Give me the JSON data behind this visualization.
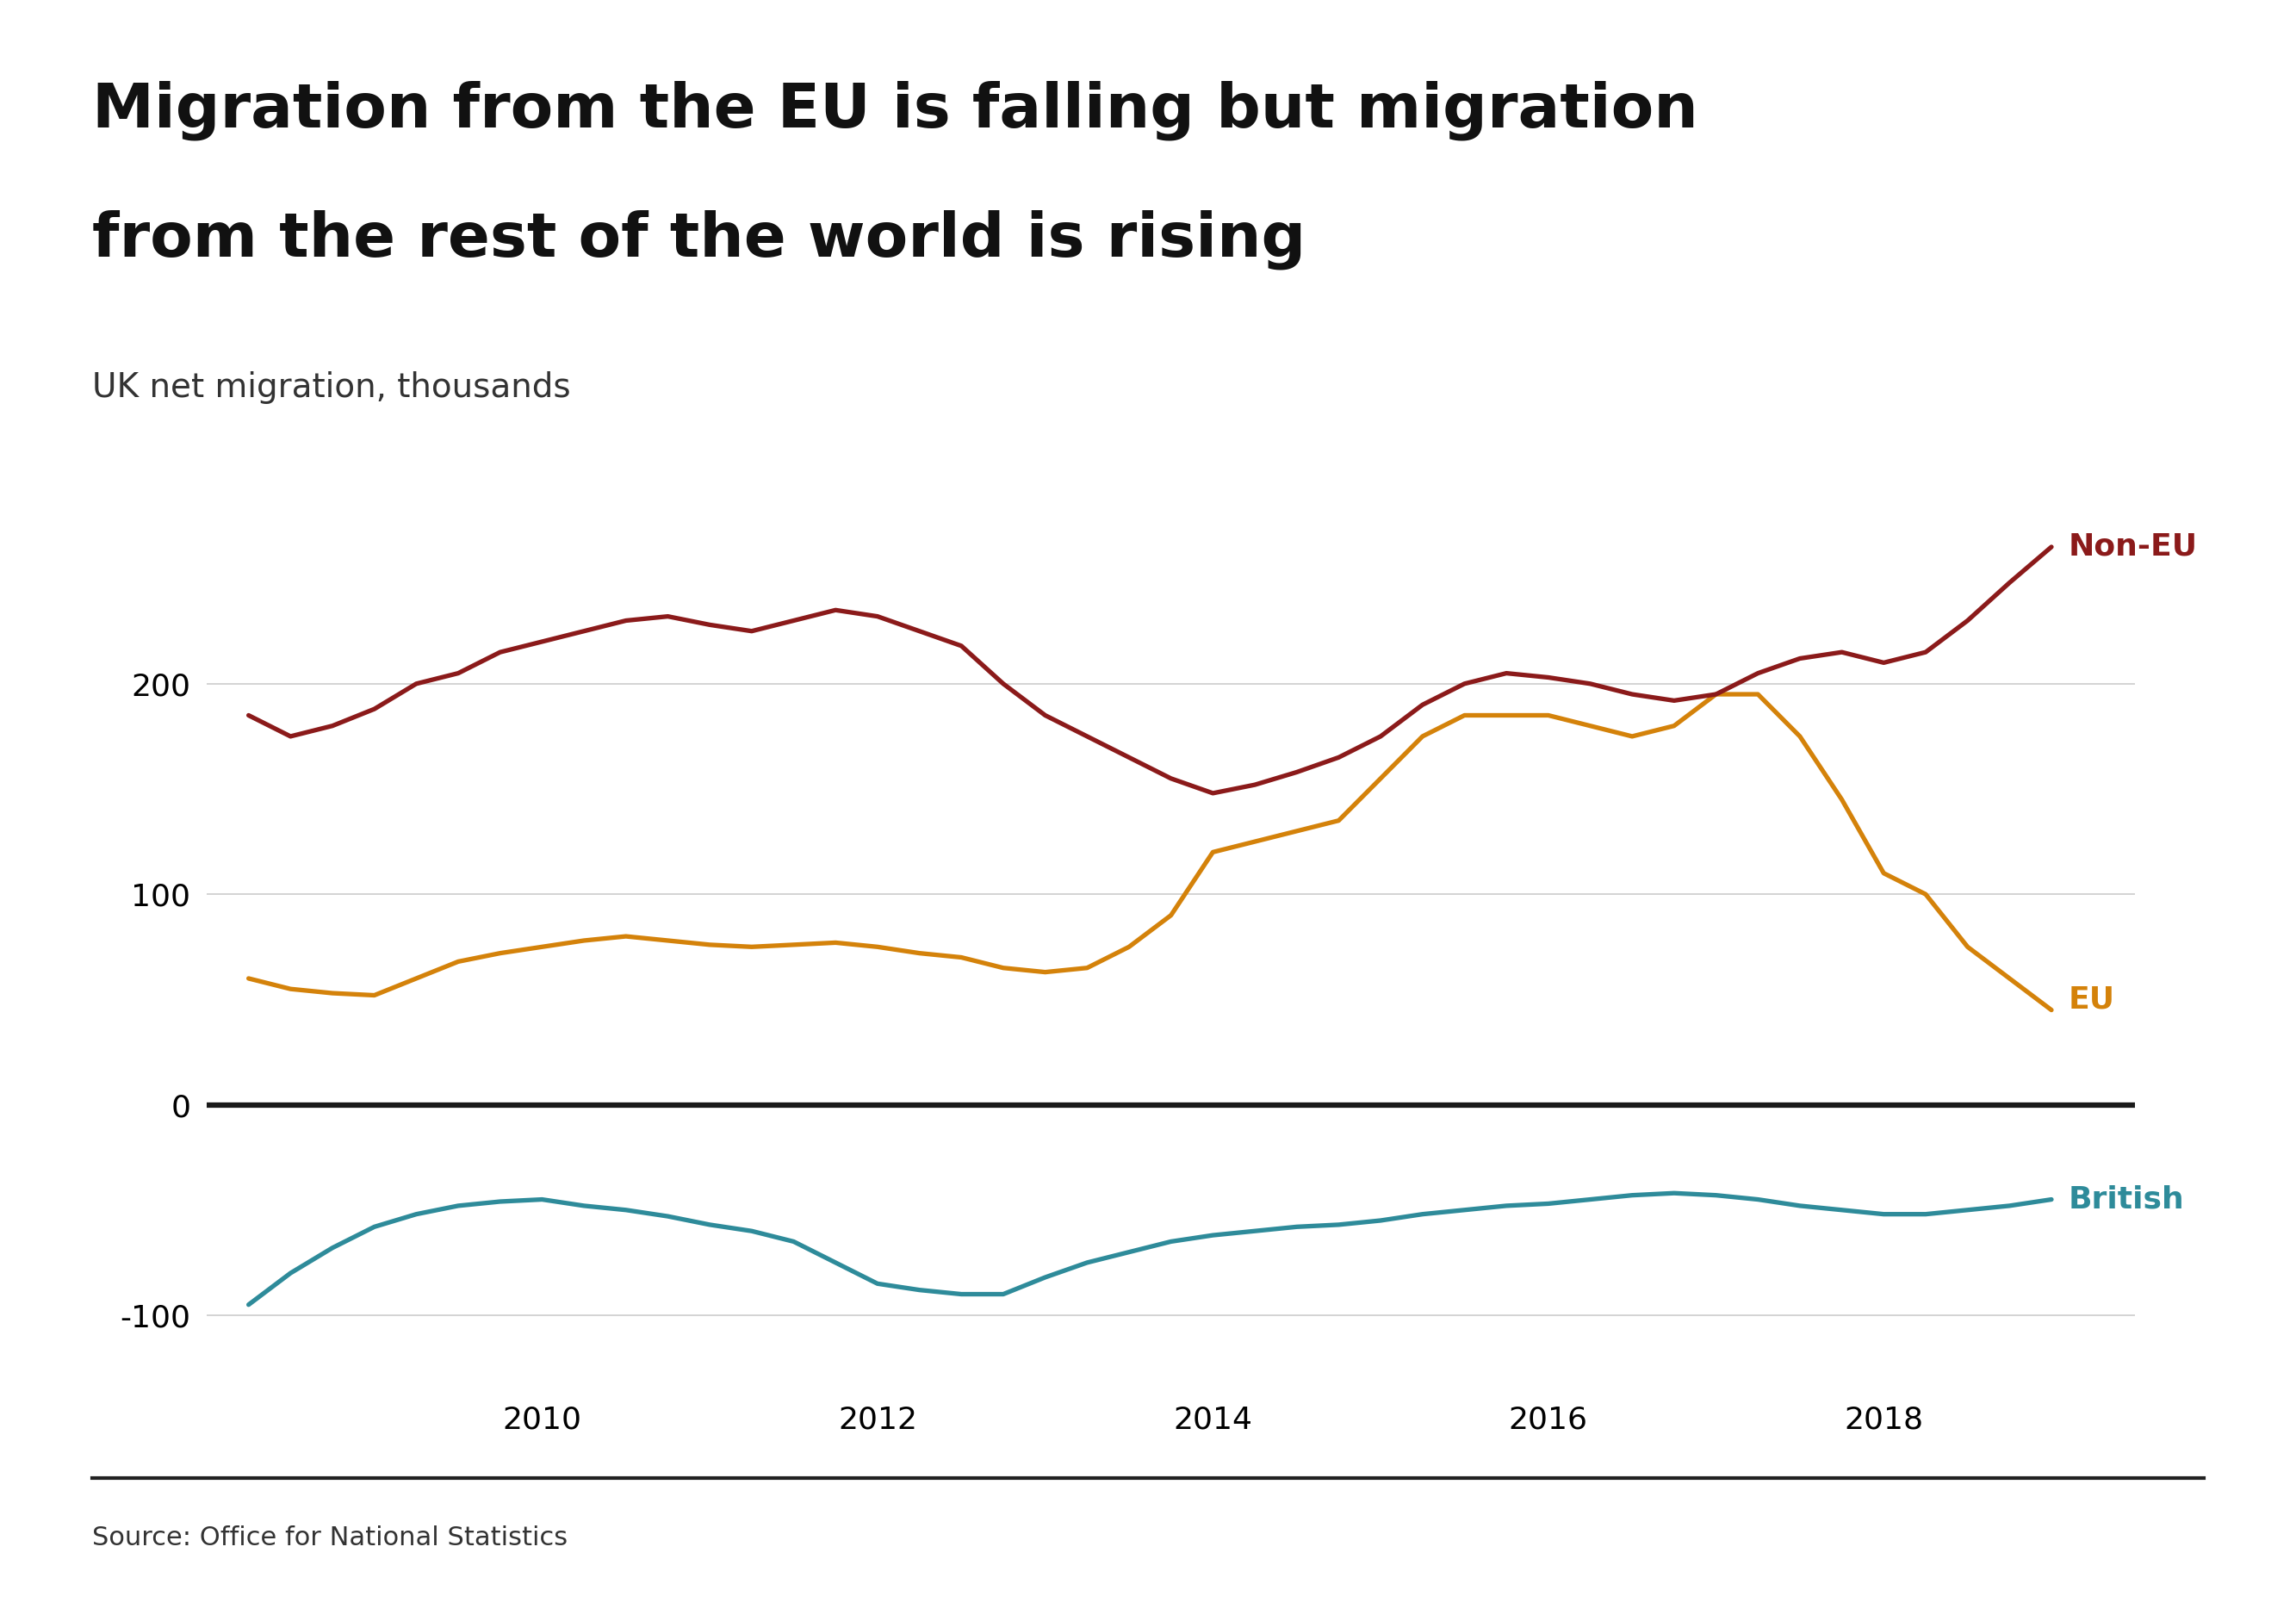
{
  "title_line1": "Migration from the EU is falling but migration",
  "title_line2": "from the rest of the world is rising",
  "subtitle": "UK net migration, thousands",
  "source": "Source: Office for National Statistics",
  "title_fontsize": 52,
  "subtitle_fontsize": 28,
  "source_fontsize": 22,
  "tick_fontsize": 26,
  "label_fontsize": 26,
  "background_color": "#ffffff",
  "non_eu_color": "#8b1a1a",
  "eu_color": "#d4820a",
  "british_color": "#2e8b9a",
  "non_eu_label": "Non-EU",
  "eu_label": "EU",
  "british_label": "British",
  "ylim": [
    -135,
    310
  ],
  "yticks": [
    -100,
    0,
    100,
    200
  ],
  "xlim_min": 2008.0,
  "xlim_max": 2019.5,
  "xticks": [
    2010,
    2012,
    2014,
    2016,
    2018
  ],
  "non_eu_x": [
    2008.25,
    2008.5,
    2008.75,
    2009.0,
    2009.25,
    2009.5,
    2009.75,
    2010.0,
    2010.25,
    2010.5,
    2010.75,
    2011.0,
    2011.25,
    2011.5,
    2011.75,
    2012.0,
    2012.25,
    2012.5,
    2012.75,
    2013.0,
    2013.25,
    2013.5,
    2013.75,
    2014.0,
    2014.25,
    2014.5,
    2014.75,
    2015.0,
    2015.25,
    2015.5,
    2015.75,
    2016.0,
    2016.25,
    2016.5,
    2016.75,
    2017.0,
    2017.25,
    2017.5,
    2017.75,
    2018.0,
    2018.25,
    2018.5,
    2018.75,
    2019.0
  ],
  "non_eu_y": [
    185,
    175,
    180,
    188,
    200,
    205,
    215,
    220,
    225,
    230,
    232,
    228,
    225,
    230,
    235,
    232,
    225,
    218,
    200,
    185,
    175,
    165,
    155,
    148,
    152,
    158,
    165,
    175,
    190,
    200,
    205,
    203,
    200,
    195,
    192,
    195,
    205,
    212,
    215,
    210,
    215,
    230,
    248,
    265
  ],
  "eu_x": [
    2008.25,
    2008.5,
    2008.75,
    2009.0,
    2009.25,
    2009.5,
    2009.75,
    2010.0,
    2010.25,
    2010.5,
    2010.75,
    2011.0,
    2011.25,
    2011.5,
    2011.75,
    2012.0,
    2012.25,
    2012.5,
    2012.75,
    2013.0,
    2013.25,
    2013.5,
    2013.75,
    2014.0,
    2014.25,
    2014.5,
    2014.75,
    2015.0,
    2015.25,
    2015.5,
    2015.75,
    2016.0,
    2016.25,
    2016.5,
    2016.75,
    2017.0,
    2017.25,
    2017.5,
    2017.75,
    2018.0,
    2018.25,
    2018.5,
    2018.75,
    2019.0
  ],
  "eu_y": [
    60,
    55,
    53,
    52,
    60,
    68,
    72,
    75,
    78,
    80,
    78,
    76,
    75,
    76,
    77,
    75,
    72,
    70,
    65,
    63,
    65,
    75,
    90,
    120,
    125,
    130,
    135,
    155,
    175,
    185,
    185,
    185,
    180,
    175,
    180,
    195,
    195,
    175,
    145,
    110,
    100,
    75,
    60,
    45
  ],
  "british_x": [
    2008.25,
    2008.5,
    2008.75,
    2009.0,
    2009.25,
    2009.5,
    2009.75,
    2010.0,
    2010.25,
    2010.5,
    2010.75,
    2011.0,
    2011.25,
    2011.5,
    2011.75,
    2012.0,
    2012.25,
    2012.5,
    2012.75,
    2013.0,
    2013.25,
    2013.5,
    2013.75,
    2014.0,
    2014.25,
    2014.5,
    2014.75,
    2015.0,
    2015.25,
    2015.5,
    2015.75,
    2016.0,
    2016.25,
    2016.5,
    2016.75,
    2017.0,
    2017.25,
    2017.5,
    2017.75,
    2018.0,
    2018.25,
    2018.5,
    2018.75,
    2019.0
  ],
  "british_y": [
    -95,
    -80,
    -68,
    -58,
    -52,
    -48,
    -46,
    -45,
    -48,
    -50,
    -53,
    -57,
    -60,
    -65,
    -75,
    -85,
    -88,
    -90,
    -90,
    -82,
    -75,
    -70,
    -65,
    -62,
    -60,
    -58,
    -57,
    -55,
    -52,
    -50,
    -48,
    -47,
    -45,
    -43,
    -42,
    -43,
    -45,
    -48,
    -50,
    -52,
    -52,
    -50,
    -48,
    -45
  ],
  "bbc_color": "#666666",
  "separator_color": "#222222",
  "grid_color": "#cccccc",
  "zero_line_color": "#1a1a1a",
  "label_text_color_non_eu": "#8b1a1a",
  "label_text_color_eu": "#d4820a",
  "label_text_color_british": "#2e8b9a"
}
